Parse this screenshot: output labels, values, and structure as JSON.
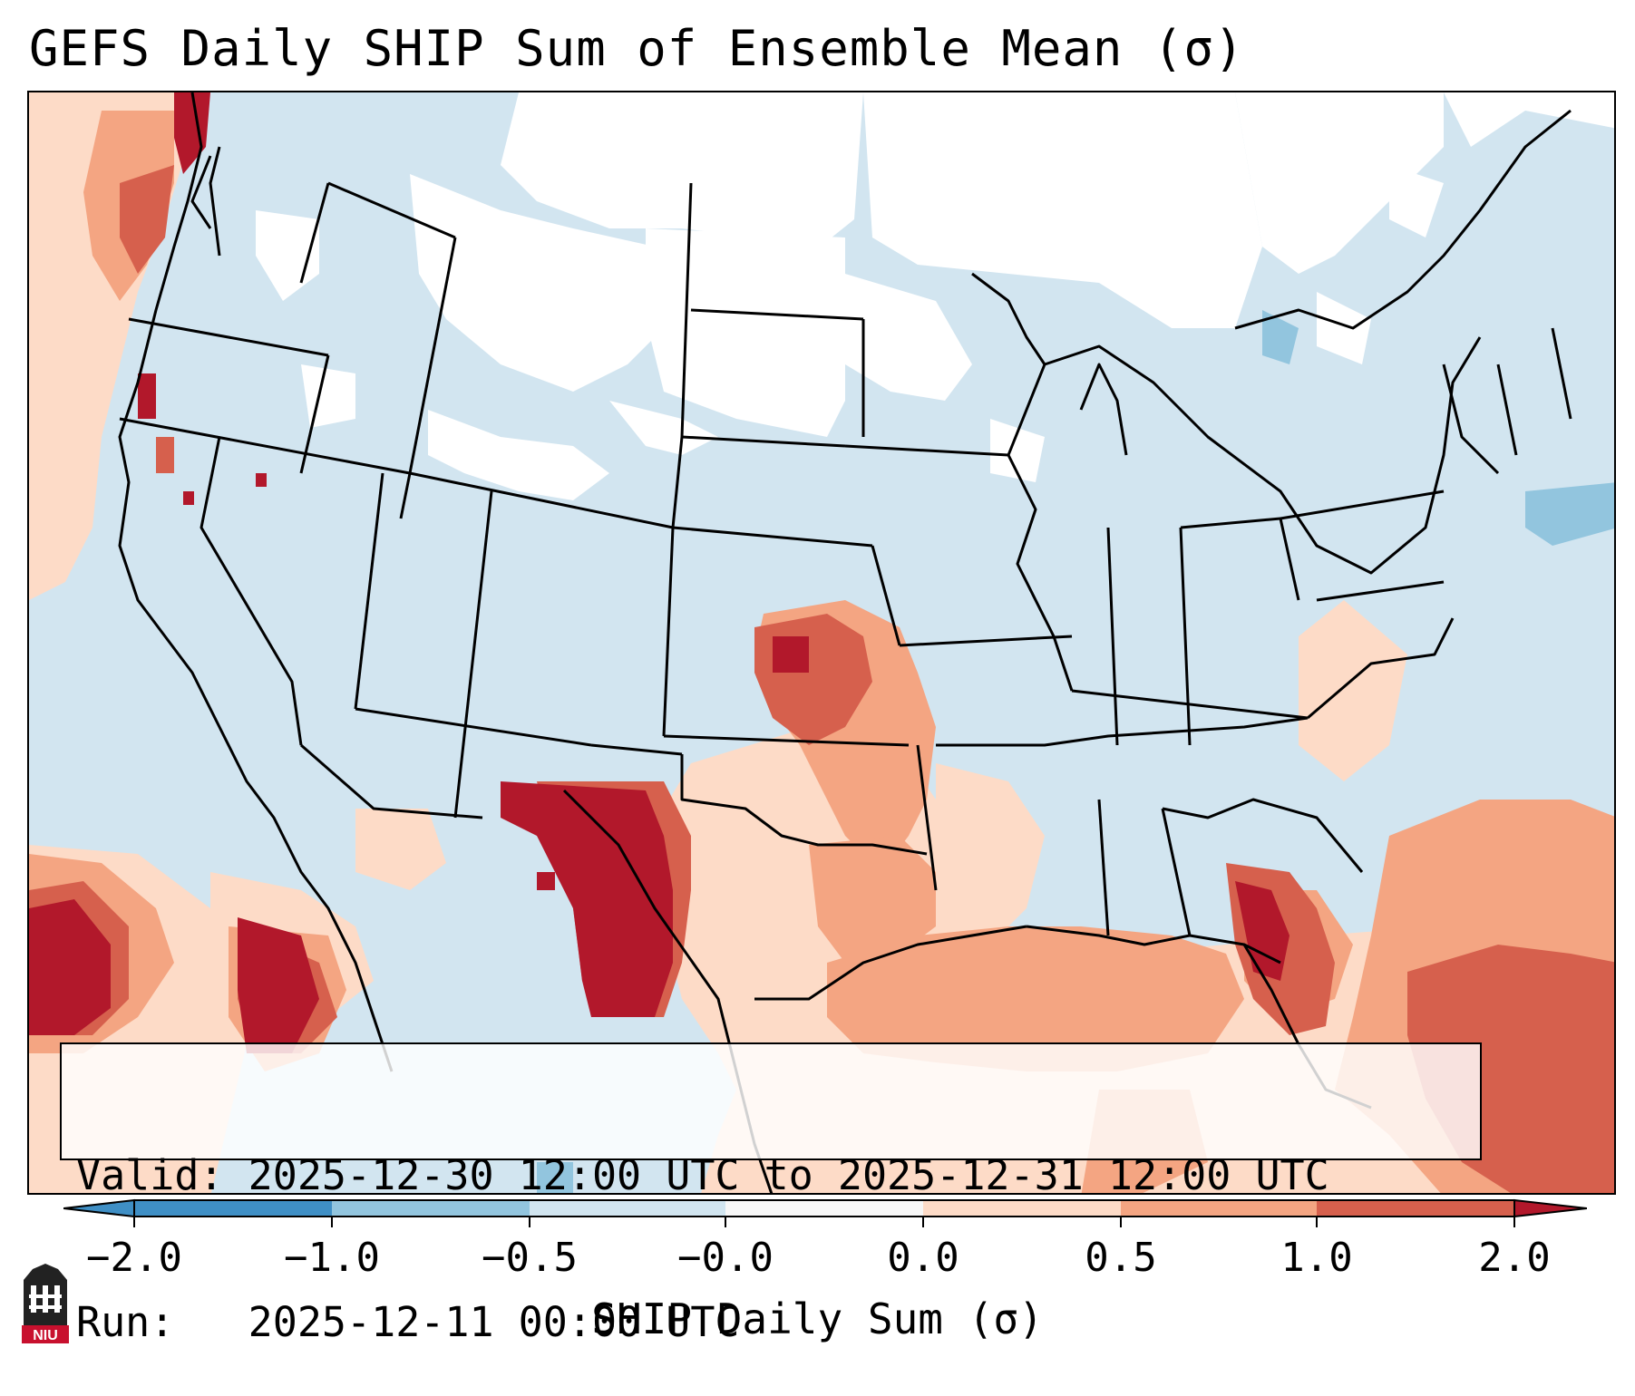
{
  "title": "GEFS Daily SHIP Sum of Ensemble Mean (σ)",
  "info": {
    "valid_label": "Valid:",
    "valid_value": "2025-12-30 12:00 UTC to 2025-12-31 12:00 UTC",
    "run_label": "Run:",
    "run_value": "2025-12-11 00:00 UTC"
  },
  "colorbar": {
    "label": "SHIP Daily Sum (σ)",
    "ticks": [
      "−2.0",
      "−1.0",
      "−0.5",
      "−0.0",
      "0.0",
      "0.5",
      "1.0",
      "2.0"
    ],
    "colors": [
      "#3f8fc5",
      "#92c5de",
      "#d1e5f0",
      "#f7f7f7",
      "#fddbc7",
      "#f4a582",
      "#d6604d",
      "#b2182b"
    ]
  },
  "logo": {
    "text": "NIU",
    "color": "#c8102e"
  },
  "map": {
    "background_color": "#d2e5f0",
    "neutral_color": "#ffffff",
    "positive_regions": [
      "Pacific Northwest coast",
      "Southern Plains / Oklahoma",
      "West Texas / New Mexico border",
      "Texas Gulf coast",
      "Gulf of Mexico",
      "Florida",
      "Caribbean / subtropical Atlantic",
      "Eastern Pacific off Mexico"
    ]
  }
}
